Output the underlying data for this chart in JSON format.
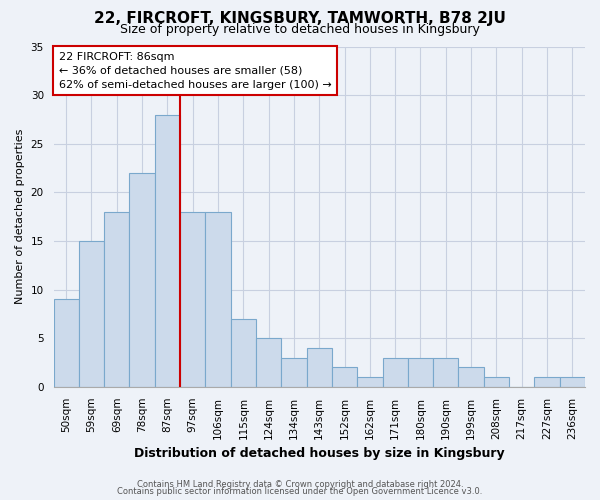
{
  "title": "22, FIRCROFT, KINGSBURY, TAMWORTH, B78 2JU",
  "subtitle": "Size of property relative to detached houses in Kingsbury",
  "xlabel": "Distribution of detached houses by size in Kingsbury",
  "ylabel": "Number of detached properties",
  "bar_labels": [
    "50sqm",
    "59sqm",
    "69sqm",
    "78sqm",
    "87sqm",
    "97sqm",
    "106sqm",
    "115sqm",
    "124sqm",
    "134sqm",
    "143sqm",
    "152sqm",
    "162sqm",
    "171sqm",
    "180sqm",
    "190sqm",
    "199sqm",
    "208sqm",
    "217sqm",
    "227sqm",
    "236sqm"
  ],
  "bar_values": [
    9,
    15,
    18,
    22,
    28,
    18,
    18,
    7,
    5,
    3,
    4,
    2,
    1,
    3,
    3,
    3,
    2,
    1,
    0,
    1,
    1
  ],
  "bar_color": "#ccdaeb",
  "bar_edgecolor": "#7aa8cc",
  "marker_line_index": 4,
  "marker_label": "22 FIRCROFT: 86sqm",
  "annotation_line1": "← 36% of detached houses are smaller (58)",
  "annotation_line2": "62% of semi-detached houses are larger (100) →",
  "annotation_box_facecolor": "#ffffff",
  "annotation_box_edgecolor": "#cc0000",
  "marker_line_color": "#cc0000",
  "ylim": [
    0,
    35
  ],
  "yticks": [
    0,
    5,
    10,
    15,
    20,
    25,
    30,
    35
  ],
  "footer_line1": "Contains HM Land Registry data © Crown copyright and database right 2024.",
  "footer_line2": "Contains public sector information licensed under the Open Government Licence v3.0.",
  "bg_color": "#eef2f8",
  "plot_bg_color": "#eef2f8",
  "grid_color": "#c8d0e0",
  "title_fontsize": 11,
  "subtitle_fontsize": 9,
  "xlabel_fontsize": 9,
  "ylabel_fontsize": 8,
  "tick_fontsize": 7.5,
  "annotation_fontsize": 8
}
